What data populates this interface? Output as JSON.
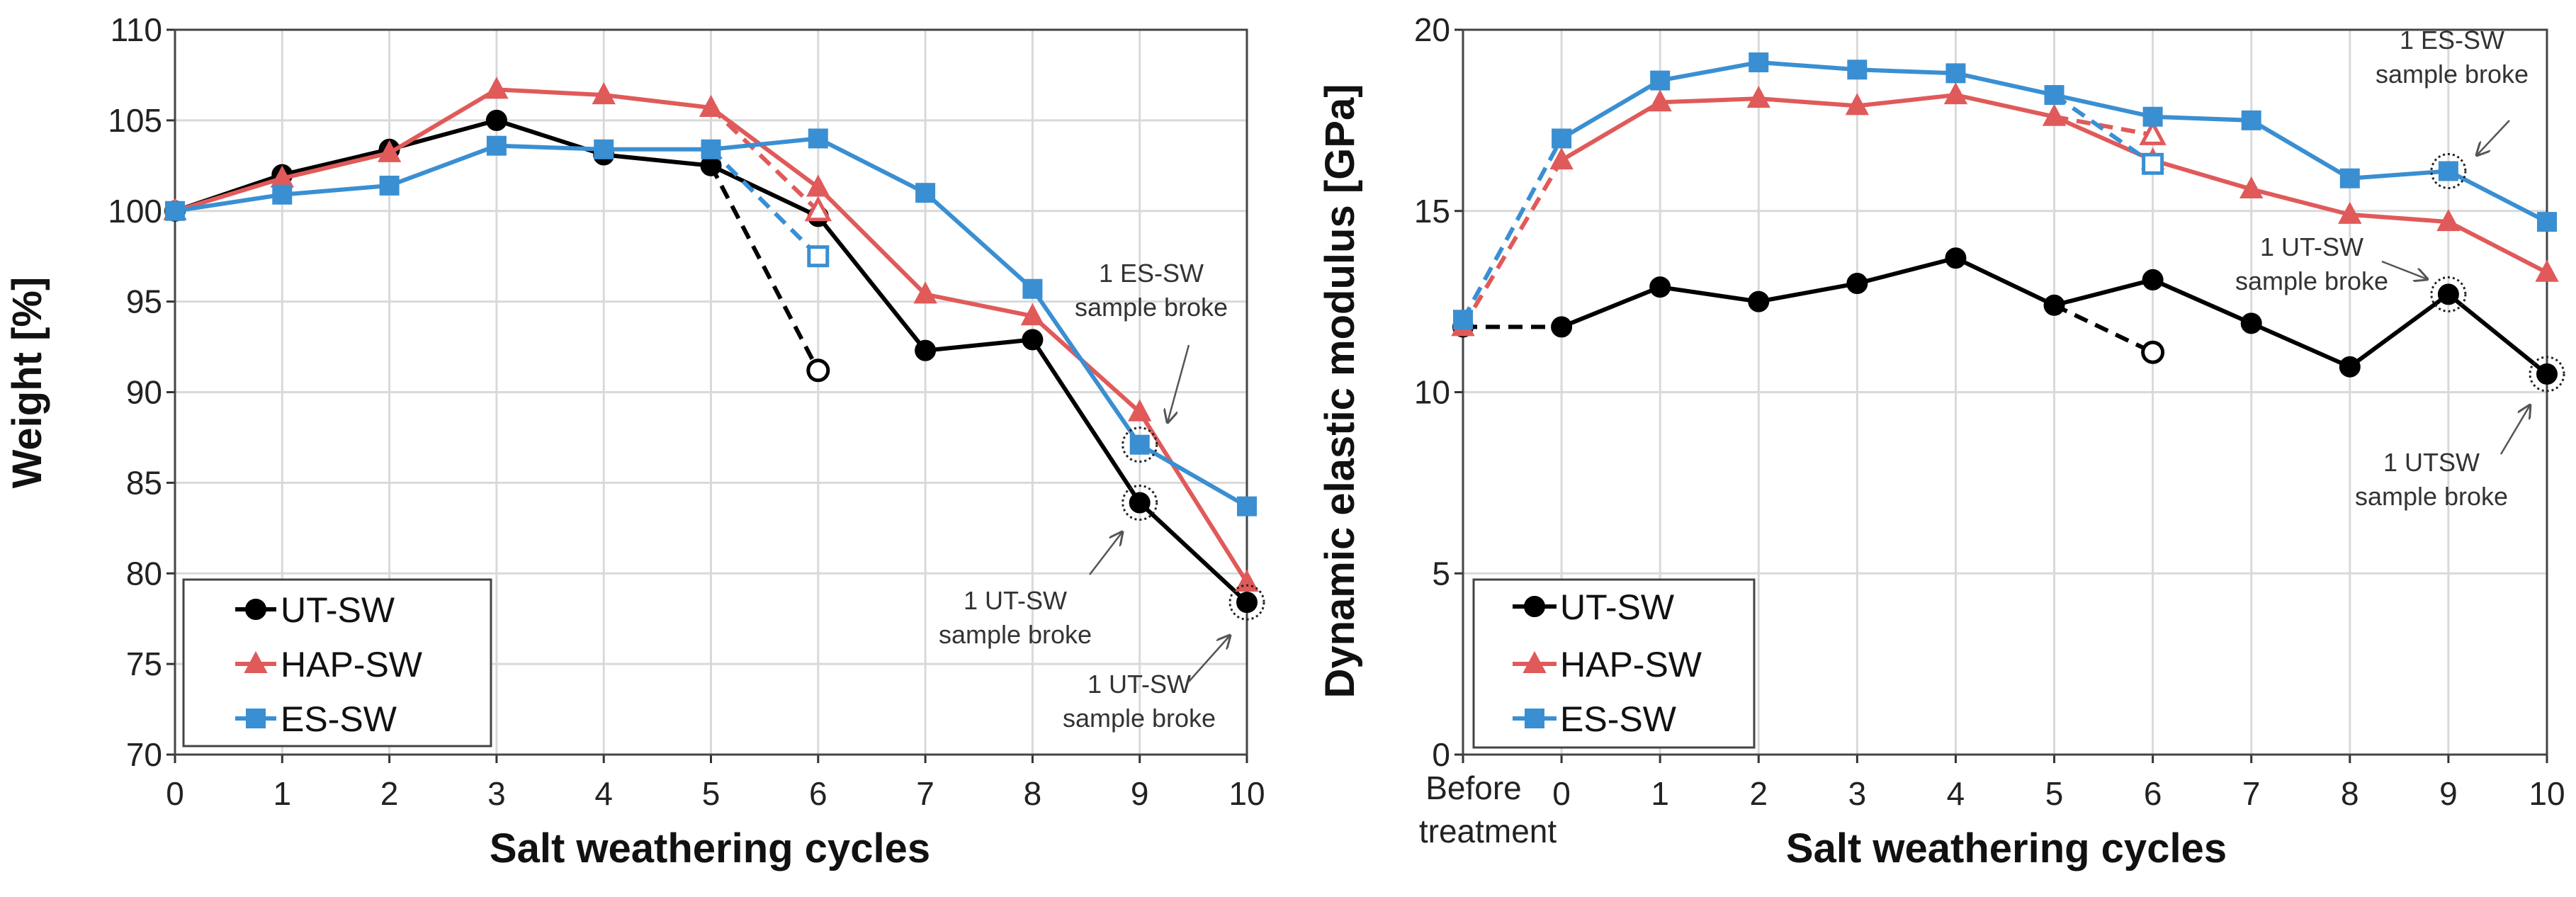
{
  "colors": {
    "UT-SW": "#000000",
    "HAP-SW": "#e05a5a",
    "ES-SW": "#3a8fd2",
    "grid": "#d9d9d9"
  },
  "chart_data": [
    {
      "type": "line",
      "xlabel": "Salt weathering cycles",
      "ylabel": "Weight  [%]",
      "x": [
        0,
        1,
        2,
        3,
        4,
        5,
        6,
        7,
        8,
        9,
        10
      ],
      "xticks": [
        "0",
        "1",
        "2",
        "3",
        "4",
        "5",
        "6",
        "7",
        "8",
        "9",
        "10"
      ],
      "ylim": [
        70,
        110
      ],
      "yticks": [
        "70",
        "75",
        "80",
        "85",
        "90",
        "95",
        "100",
        "105",
        "110"
      ],
      "grid": true,
      "legend": "bottom-left",
      "series": [
        {
          "name": "UT-SW",
          "marker": "circle",
          "values": [
            100,
            102,
            103.4,
            105,
            103.1,
            102.5,
            99.7,
            92.3,
            92.9,
            83.9,
            78.4
          ],
          "open_point": {
            "from": 5,
            "x": 6,
            "y": 91.2
          }
        },
        {
          "name": "HAP-SW",
          "marker": "triangle",
          "values": [
            100,
            101.8,
            103.2,
            106.7,
            106.4,
            105.7,
            101.3,
            95.4,
            94.2,
            88.9,
            79.5
          ],
          "open_point": {
            "from": 5,
            "x": 6,
            "y": 100
          }
        },
        {
          "name": "ES-SW",
          "marker": "square",
          "values": [
            100,
            100.9,
            101.4,
            103.6,
            103.4,
            103.4,
            104,
            101,
            95.7,
            87.1,
            83.7
          ],
          "open_point": {
            "from": 5,
            "x": 6,
            "y": 97.5
          }
        }
      ],
      "broken_markers": [
        {
          "series": "ES-SW",
          "x": 9
        },
        {
          "series": "UT-SW",
          "x": 9
        },
        {
          "series": "UT-SW",
          "x": 10
        }
      ],
      "annotations": [
        {
          "line1": "1 ES-SW",
          "line2": "sample broke"
        },
        {
          "line1": "1 UT-SW",
          "line2": "sample broke"
        },
        {
          "line1": "1 UT-SW",
          "line2": "sample broke"
        }
      ]
    },
    {
      "type": "line",
      "xlabel": "Salt weathering cycles",
      "ylabel": "Dynamic elastic modulus [GPa]",
      "x": [
        -1,
        0,
        1,
        2,
        3,
        4,
        5,
        6,
        7,
        8,
        9,
        10
      ],
      "xticks": [
        "",
        "0",
        "1",
        "2",
        "3",
        "4",
        "5",
        "6",
        "7",
        "8",
        "9",
        "10"
      ],
      "first_tick": {
        "line1": "Before",
        "line2": "treatment"
      },
      "ylim": [
        0,
        20
      ],
      "yticks": [
        "0",
        "5",
        "10",
        "15",
        "20"
      ],
      "grid": true,
      "legend": "bottom-left",
      "dashed_first_segment": true,
      "series": [
        {
          "name": "UT-SW",
          "marker": "circle",
          "values": [
            11.8,
            11.8,
            12.9,
            12.5,
            13,
            13.7,
            12.4,
            13.1,
            11.9,
            10.7,
            12.7,
            10.5
          ],
          "open_point": {
            "from": 5,
            "x": 6,
            "y": 11.1
          }
        },
        {
          "name": "HAP-SW",
          "marker": "triangle",
          "values": [
            11.8,
            16.4,
            18,
            18.1,
            17.9,
            18.2,
            17.6,
            16.4,
            15.6,
            14.9,
            14.7,
            13.3
          ],
          "open_point": {
            "from": 5,
            "x": 6,
            "y": 17.1
          }
        },
        {
          "name": "ES-SW",
          "marker": "square",
          "values": [
            12,
            17,
            18.6,
            19.1,
            18.9,
            18.8,
            18.2,
            17.6,
            17.5,
            15.9,
            16.1,
            14.7
          ],
          "open_point": {
            "from": 5,
            "x": 6,
            "y": 16.3
          }
        }
      ],
      "broken_markers": [
        {
          "series": "ES-SW",
          "x": 9
        },
        {
          "series": "UT-SW",
          "x": 9
        },
        {
          "series": "UT-SW",
          "x": 10
        }
      ],
      "annotations": [
        {
          "line1": "1 ES-SW",
          "line2": "sample broke"
        },
        {
          "line1": "1 UT-SW",
          "line2": "sample broke"
        },
        {
          "line1": "1 UTSW",
          "line2": "sample broke"
        }
      ]
    }
  ]
}
